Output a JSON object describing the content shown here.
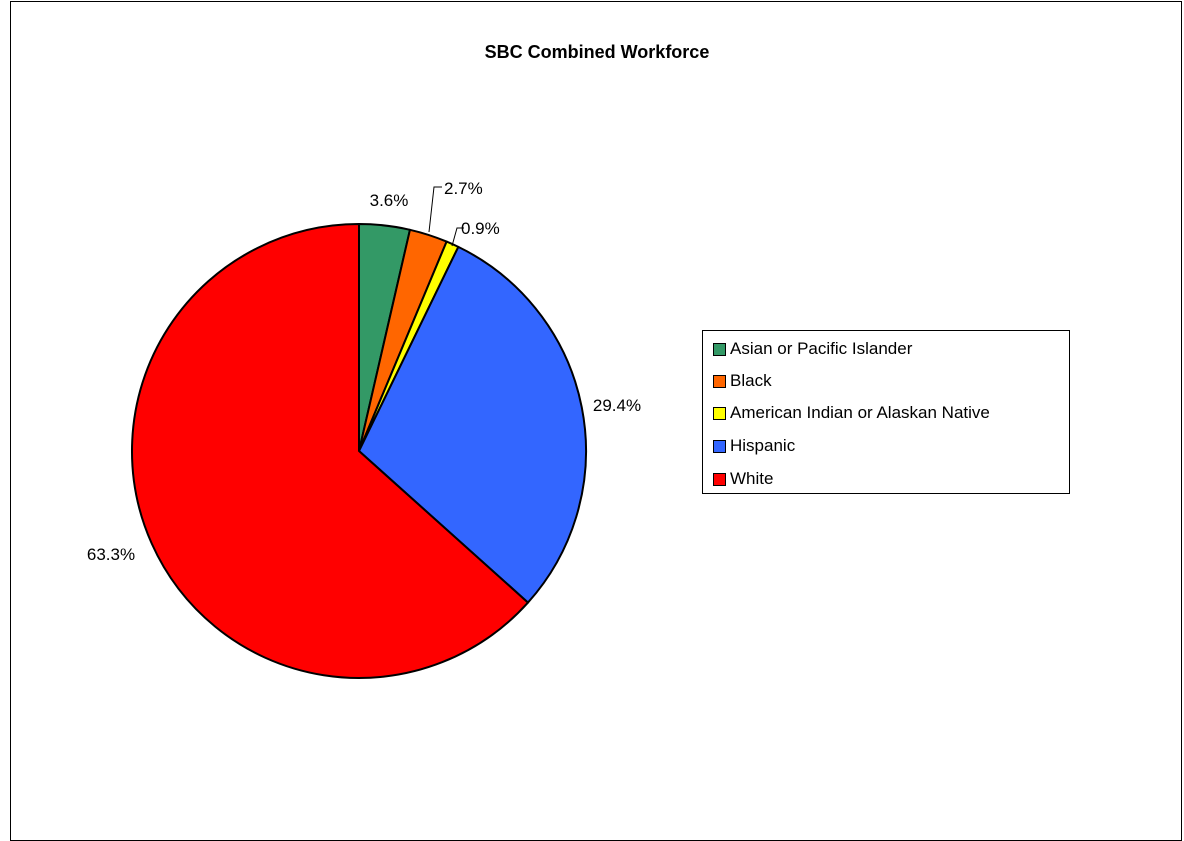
{
  "chart_data": {
    "type": "pie",
    "title": "SBC Combined Workforce",
    "categories": [
      "Asian or Pacific Islander",
      "Black",
      "American Indian or Alaskan Native",
      "Hispanic",
      "White"
    ],
    "values": [
      3.6,
      2.7,
      0.9,
      29.4,
      63.3
    ],
    "labels": [
      "3.6%",
      "2.7%",
      "0.9%",
      "29.4%",
      "63.3%"
    ],
    "colors": [
      "#339966",
      "#FF6600",
      "#FFFF00",
      "#3366FF",
      "#FF0000"
    ],
    "start_angle": "12 o'clock",
    "direction": "clockwise",
    "legend_position": "right",
    "legend": [
      {
        "label": "Asian or Pacific Islander",
        "color": "#339966"
      },
      {
        "label": "Black",
        "color": "#FF6600"
      },
      {
        "label": "American Indian or Alaskan Native",
        "color": "#FFFF00"
      },
      {
        "label": "Hispanic",
        "color": "#3366FF"
      },
      {
        "label": "White",
        "color": "#FF0000"
      }
    ]
  }
}
